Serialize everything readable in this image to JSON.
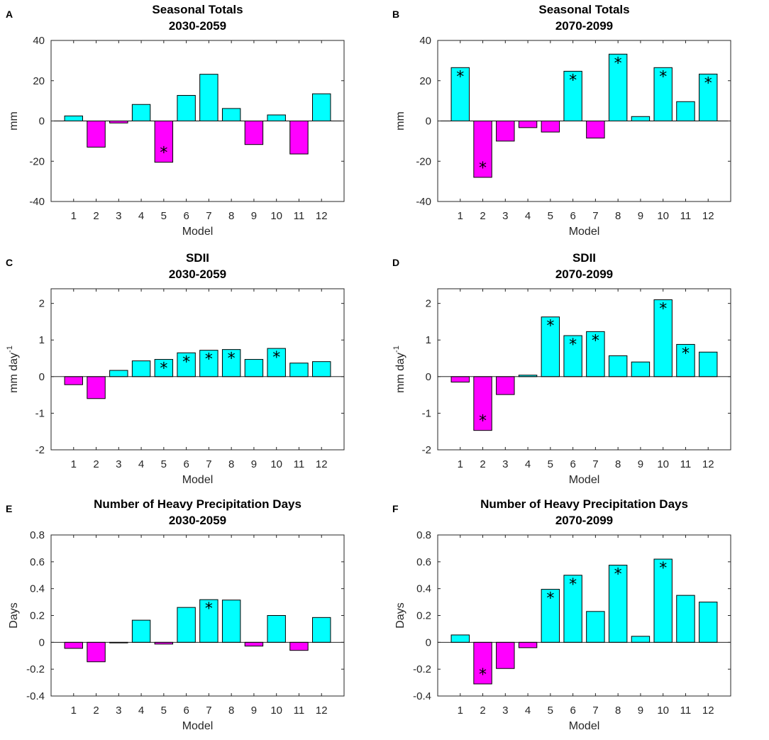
{
  "colors": {
    "positive": "#00ffff",
    "negative": "#ff00ff"
  },
  "chart_data": [
    {
      "panel": "A",
      "type": "bar",
      "title": [
        "Seasonal Totals",
        "2030-2059"
      ],
      "xlabel": "Model",
      "ylabel": "mm",
      "ylim": [
        -40,
        40
      ],
      "yticks": [
        -40,
        -20,
        0,
        20,
        40
      ],
      "categories": [
        "1",
        "2",
        "3",
        "4",
        "5",
        "6",
        "7",
        "8",
        "9",
        "10",
        "11",
        "12"
      ],
      "values": [
        2.5,
        -13,
        -1,
        8.2,
        -20.5,
        12.7,
        23.2,
        6.2,
        -11.7,
        3,
        -16.4,
        13.5
      ],
      "significant": [
        false,
        false,
        false,
        false,
        true,
        false,
        false,
        false,
        false,
        false,
        false,
        false
      ]
    },
    {
      "panel": "B",
      "type": "bar",
      "title": [
        "Seasonal Totals",
        "2070-2099"
      ],
      "xlabel": "Model",
      "ylabel": "mm",
      "ylim": [
        -40,
        40
      ],
      "yticks": [
        -40,
        -20,
        0,
        20,
        40
      ],
      "categories": [
        "1",
        "2",
        "3",
        "4",
        "5",
        "6",
        "7",
        "8",
        "9",
        "10",
        "11",
        "12"
      ],
      "values": [
        26.5,
        -28,
        -10,
        -3.3,
        -5.5,
        24.7,
        -8.5,
        33.2,
        2.2,
        26.5,
        9.6,
        23.3
      ],
      "significant": [
        true,
        true,
        false,
        false,
        false,
        true,
        false,
        true,
        false,
        true,
        false,
        true
      ]
    },
    {
      "panel": "C",
      "type": "bar",
      "title": [
        "SDII",
        "2030-2059"
      ],
      "xlabel": "Model",
      "ylabel": "mm day",
      "ylabel_sup": "-1",
      "ylim": [
        -2,
        2.4
      ],
      "yticks": [
        -2,
        -1,
        0,
        1,
        2
      ],
      "categories": [
        "1",
        "2",
        "3",
        "4",
        "5",
        "6",
        "7",
        "8",
        "9",
        "10",
        "11",
        "12"
      ],
      "values": [
        -0.22,
        -0.6,
        0.17,
        0.43,
        0.47,
        0.65,
        0.72,
        0.74,
        0.47,
        0.77,
        0.37,
        0.41
      ],
      "significant": [
        false,
        false,
        false,
        false,
        true,
        true,
        true,
        true,
        false,
        true,
        false,
        false
      ]
    },
    {
      "panel": "D",
      "type": "bar",
      "title": [
        "SDII",
        "2070-2099"
      ],
      "xlabel": "Model",
      "ylabel": "mm day",
      "ylabel_sup": "-1",
      "ylim": [
        -2,
        2.4
      ],
      "yticks": [
        -2,
        -1,
        0,
        1,
        2
      ],
      "categories": [
        "1",
        "2",
        "3",
        "4",
        "5",
        "6",
        "7",
        "8",
        "9",
        "10",
        "11",
        "12"
      ],
      "values": [
        -0.15,
        -1.47,
        -0.49,
        0.04,
        1.63,
        1.12,
        1.23,
        0.57,
        0.4,
        2.1,
        0.88,
        0.67
      ],
      "significant": [
        false,
        true,
        false,
        false,
        true,
        true,
        true,
        false,
        false,
        true,
        true,
        false
      ]
    },
    {
      "panel": "E",
      "type": "bar",
      "title": [
        "Number of Heavy Precipitation Days",
        "2030-2059"
      ],
      "xlabel": "Model",
      "ylabel": "Days",
      "ylim": [
        -0.4,
        0.8
      ],
      "yticks": [
        -0.4,
        -0.2,
        0,
        0.2,
        0.4,
        0.6,
        0.8
      ],
      "categories": [
        "1",
        "2",
        "3",
        "4",
        "5",
        "6",
        "7",
        "8",
        "9",
        "10",
        "11",
        "12"
      ],
      "values": [
        -0.045,
        -0.145,
        -0.004,
        0.165,
        -0.013,
        0.26,
        0.318,
        0.315,
        -0.028,
        0.2,
        -0.06,
        0.185
      ],
      "significant": [
        false,
        false,
        false,
        false,
        false,
        false,
        true,
        false,
        false,
        false,
        false,
        false
      ]
    },
    {
      "panel": "F",
      "type": "bar",
      "title": [
        "Number of Heavy Precipitation Days",
        "2070-2099"
      ],
      "xlabel": "Model",
      "ylabel": "Days",
      "ylim": [
        -0.4,
        0.8
      ],
      "yticks": [
        -0.4,
        -0.2,
        0,
        0.2,
        0.4,
        0.6,
        0.8
      ],
      "categories": [
        "1",
        "2",
        "3",
        "4",
        "5",
        "6",
        "7",
        "8",
        "9",
        "10",
        "11",
        "12"
      ],
      "values": [
        0.055,
        -0.31,
        -0.195,
        -0.04,
        0.395,
        0.5,
        0.23,
        0.575,
        0.045,
        0.62,
        0.35,
        0.3
      ],
      "significant": [
        false,
        true,
        false,
        false,
        true,
        true,
        false,
        true,
        false,
        true,
        false,
        false
      ]
    }
  ]
}
